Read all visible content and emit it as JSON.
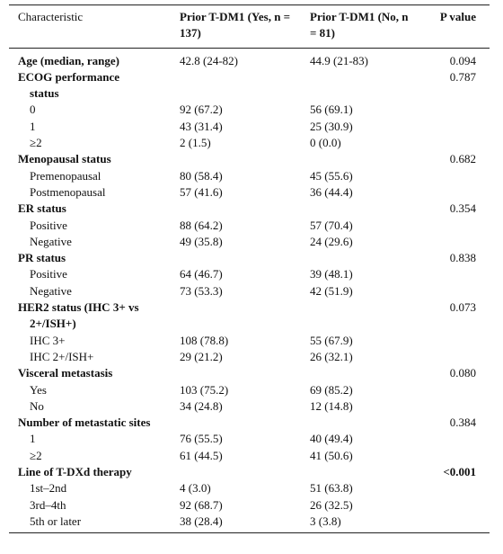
{
  "table": {
    "header": [
      "Characteristic",
      "Prior T-DM1 (Yes, n = 137)",
      "Prior T-DM1 (No, n = 81)",
      "P value"
    ],
    "rows": [
      {
        "label": "Age (median, range)",
        "bold": true,
        "yes": "42.8 (24-82)",
        "no": "44.9 (21-83)",
        "p": "0.094"
      },
      {
        "label": "ECOG performance status",
        "bold": true,
        "p": "0.787"
      },
      {
        "label": "0",
        "yes": "92 (67.2)",
        "no": "56 (69.1)"
      },
      {
        "label": "1",
        "yes": "43 (31.4)",
        "no": "25 (30.9)"
      },
      {
        "label": "≥2",
        "yes": "2 (1.5)",
        "no": "0 (0.0)"
      },
      {
        "label": "Menopausal status",
        "bold": true,
        "p": "0.682"
      },
      {
        "label": "Premenopausal",
        "yes": "80 (58.4)",
        "no": "45 (55.6)"
      },
      {
        "label": "Postmenopausal",
        "yes": "57 (41.6)",
        "no": "36 (44.4)"
      },
      {
        "label": "ER status",
        "bold": true,
        "p": "0.354"
      },
      {
        "label": "Positive",
        "yes": "88 (64.2)",
        "no": "57 (70.4)"
      },
      {
        "label": "Negative",
        "yes": "49 (35.8)",
        "no": "24 (29.6)"
      },
      {
        "label": "PR status",
        "bold": true,
        "p": "0.838"
      },
      {
        "label": "Positive",
        "yes": "64 (46.7)",
        "no": "39 (48.1)"
      },
      {
        "label": "Negative",
        "yes": "73 (53.3)",
        "no": "42 (51.9)"
      },
      {
        "label": "HER2 status (IHC 3+ vs 2+/ISH+)",
        "bold": true,
        "p": "0.073"
      },
      {
        "label": "IHC 3+",
        "yes": "108 (78.8)",
        "no": "55 (67.9)"
      },
      {
        "label": "IHC 2+/ISH+",
        "yes": "29 (21.2)",
        "no": "26 (32.1)"
      },
      {
        "label": "Visceral metastasis",
        "bold": true,
        "p": "0.080"
      },
      {
        "label": "Yes",
        "yes": "103 (75.2)",
        "no": "69 (85.2)"
      },
      {
        "label": "No",
        "yes": "34 (24.8)",
        "no": "12 (14.8)"
      },
      {
        "label": "Number of metastatic sites",
        "bold": true,
        "p": "0.384"
      },
      {
        "label": "1",
        "yes": "76 (55.5)",
        "no": "40 (49.4)"
      },
      {
        "label": "≥2",
        "yes": "61 (44.5)",
        "no": "41 (50.6)"
      },
      {
        "label": "Line of T-DXd therapy",
        "bold": true,
        "p": "<0.001",
        "p_bold": true
      },
      {
        "label": "1st–2nd",
        "yes": "4 (3.0)",
        "no": "51 (63.8)"
      },
      {
        "label": "3rd–4th",
        "yes": "92 (68.7)",
        "no": "26 (32.5)"
      },
      {
        "label": "5th or later",
        "yes": "38 (28.4)",
        "no": "3 (3.8)"
      }
    ]
  }
}
